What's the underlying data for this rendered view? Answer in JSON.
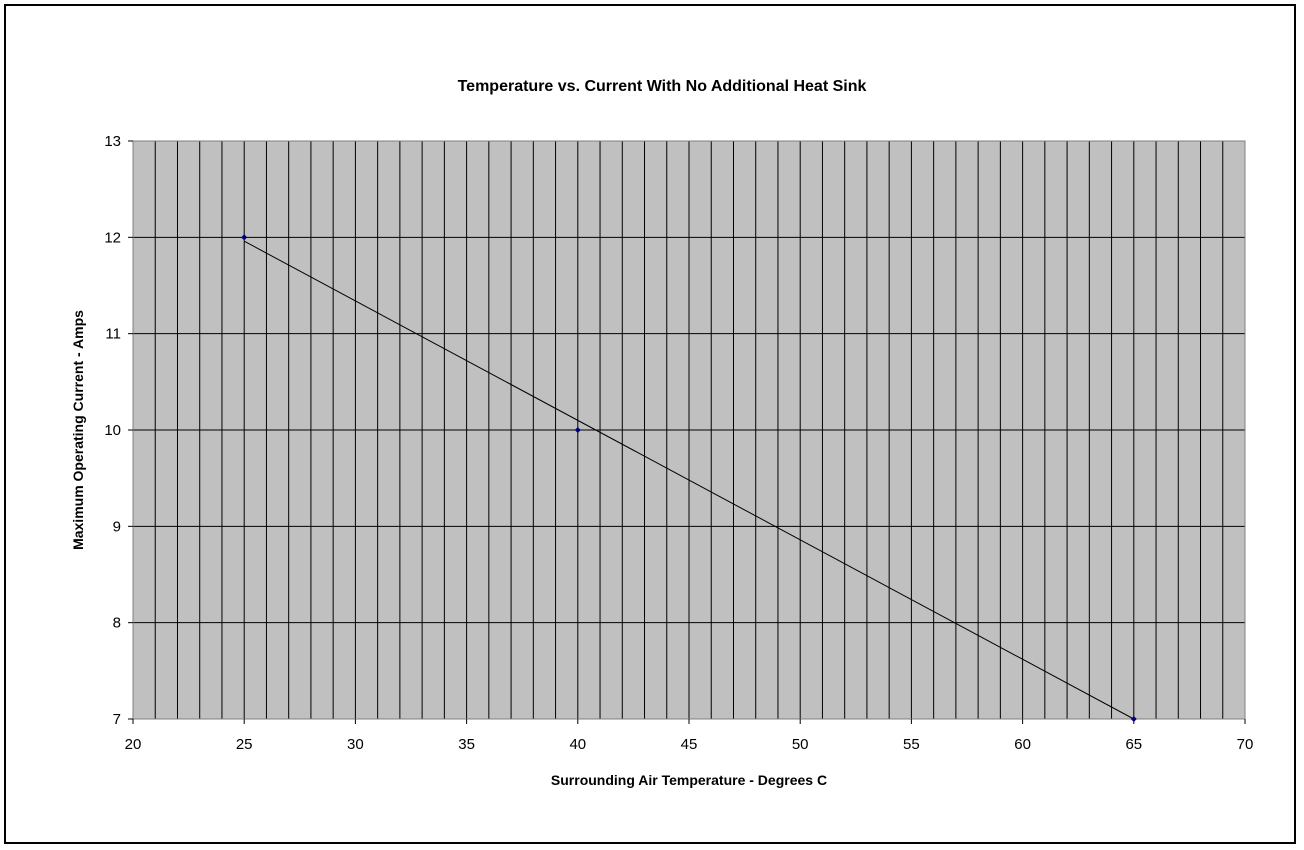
{
  "chart_data": {
    "type": "line",
    "title": "Temperature vs. Current With No Additional Heat Sink",
    "xlabel": "Surrounding Air Temperature - Degrees C",
    "ylabel": "Maximum Operating Current - Amps",
    "xlim": [
      20,
      70
    ],
    "ylim": [
      7,
      13
    ],
    "x_ticks": [
      20,
      25,
      30,
      35,
      40,
      45,
      50,
      55,
      60,
      65,
      70
    ],
    "y_ticks": [
      7,
      8,
      9,
      10,
      11,
      12,
      13
    ],
    "x_minor_step": 1,
    "grid": true,
    "legend": "none",
    "series": [
      {
        "x": [
          25,
          40,
          65
        ],
        "y": [
          12,
          10,
          7
        ]
      }
    ],
    "trendline": {
      "type": "linear",
      "x": [
        25,
        65
      ],
      "y": [
        11.96,
        7.0
      ]
    },
    "colors": {
      "plot_background": "#c0c0c0",
      "marker": "#00007f",
      "line": "#000000",
      "grid": "#000000"
    }
  }
}
